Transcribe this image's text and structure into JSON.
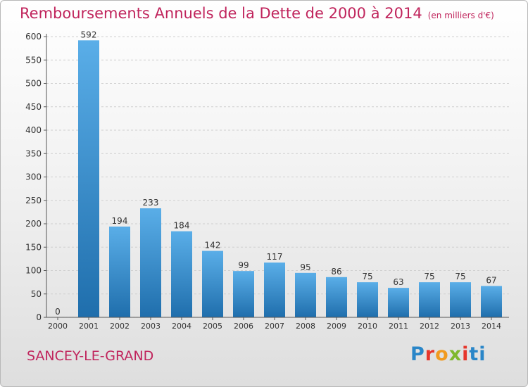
{
  "title": "Remboursements Annuels de la Dette de 2000 à 2014",
  "unit": "(en milliers d'€)",
  "commune": "SANCEY-LE-GRAND",
  "logo": {
    "text": "Proxiti",
    "letters": [
      "P",
      "r",
      "o",
      "x",
      "i",
      "ti"
    ]
  },
  "colors": {
    "accent": "#c0245c",
    "bar_top": "#5aaee8",
    "bar_bottom": "#1f6eac"
  },
  "chart_data": {
    "type": "bar",
    "categories": [
      "2000",
      "2001",
      "2002",
      "2003",
      "2004",
      "2005",
      "2006",
      "2007",
      "2008",
      "2009",
      "2010",
      "2011",
      "2012",
      "2013",
      "2014"
    ],
    "values": [
      0,
      592,
      194,
      233,
      184,
      142,
      99,
      117,
      95,
      86,
      75,
      63,
      75,
      75,
      67
    ],
    "ylim": [
      0,
      600
    ],
    "yticks": [
      0,
      50,
      100,
      150,
      200,
      250,
      300,
      350,
      400,
      450,
      500,
      550,
      600
    ],
    "grid": true
  }
}
